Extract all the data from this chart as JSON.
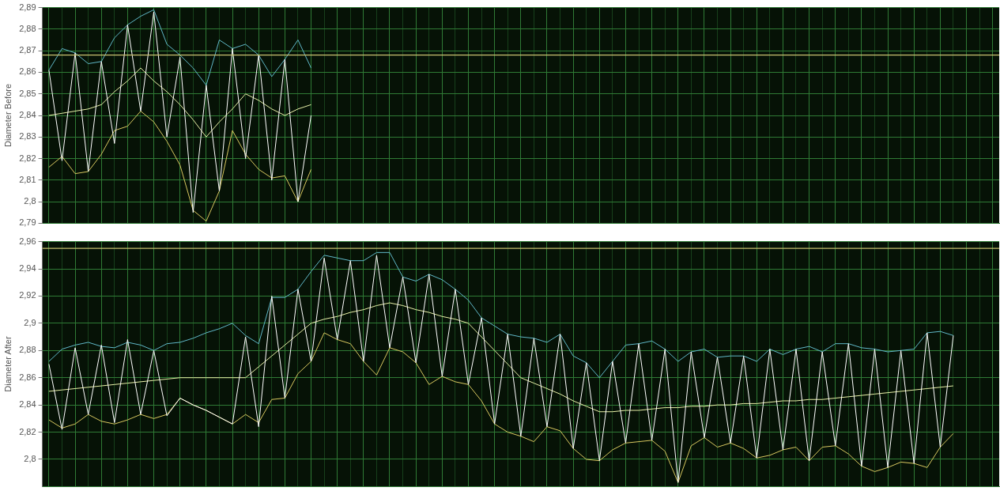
{
  "chart_data": [
    {
      "type": "line",
      "ylabel": "Diameter Before",
      "categories": [
        null,
        null,
        null,
        null,
        null,
        null,
        null,
        null,
        null,
        null,
        null,
        null,
        null,
        null,
        null,
        null,
        null,
        null,
        null,
        null,
        null,
        null,
        null,
        null,
        null,
        null,
        null,
        null,
        null,
        null,
        null,
        null,
        null,
        null,
        null,
        null,
        null,
        null,
        null,
        null,
        null,
        null,
        null,
        null,
        null,
        null,
        null,
        null,
        null,
        null,
        null,
        null,
        null,
        null,
        null,
        null,
        null,
        null,
        null,
        null,
        null,
        null,
        null,
        null,
        null,
        null,
        null,
        null,
        null,
        null,
        null,
        null,
        null
      ],
      "ylim": [
        2.79,
        2.89
      ],
      "yticks": [
        {
          "value": 2.79,
          "label": "2,79"
        },
        {
          "value": 2.8,
          "label": "2,8"
        },
        {
          "value": 2.81,
          "label": "2,81"
        },
        {
          "value": 2.82,
          "label": "2,82"
        },
        {
          "value": 2.83,
          "label": "2,83"
        },
        {
          "value": 2.84,
          "label": "2,84"
        },
        {
          "value": 2.85,
          "label": "2,85"
        },
        {
          "value": 2.86,
          "label": "2,86"
        },
        {
          "value": 2.87,
          "label": "2,87"
        },
        {
          "value": 2.88,
          "label": "2,88"
        },
        {
          "value": 2.89,
          "label": "2,89"
        }
      ],
      "tick_labels": "y",
      "grid": true,
      "legend": false,
      "marker": "none",
      "line_style": "solid",
      "ref_lines": [
        {
          "axis": "y",
          "value": 2.868,
          "color": "#c8c070"
        }
      ],
      "series": [
        {
          "color": "#ffffff",
          "values": [
            2.861,
            2.819,
            2.869,
            2.814,
            2.865,
            2.827,
            2.882,
            2.842,
            2.888,
            2.83,
            2.867,
            2.795,
            2.854,
            2.805,
            2.871,
            2.82,
            2.868,
            2.81,
            2.866,
            2.8,
            2.84,
            null,
            null,
            null,
            null,
            null,
            null,
            null,
            null,
            null,
            null,
            null,
            null,
            null,
            null,
            null,
            null,
            null,
            null,
            null,
            null,
            null,
            null,
            null,
            null,
            null,
            null,
            null,
            null,
            null,
            null,
            null,
            null,
            null,
            null,
            null,
            null,
            null,
            null,
            null,
            null,
            null,
            null,
            null,
            null,
            null,
            null,
            null,
            null,
            null,
            null,
            null,
            null
          ]
        },
        {
          "color": "#e8f0a8",
          "values": [
            2.84,
            2.841,
            2.842,
            2.843,
            2.845,
            2.851,
            2.856,
            2.862,
            2.856,
            2.851,
            2.845,
            2.838,
            2.83,
            2.837,
            2.843,
            2.85,
            2.847,
            2.843,
            2.84,
            2.843,
            2.845,
            null,
            null,
            null,
            null,
            null,
            null,
            null,
            null,
            null,
            null,
            null,
            null,
            null,
            null,
            null,
            null,
            null,
            null,
            null,
            null,
            null,
            null,
            null,
            null,
            null,
            null,
            null,
            null,
            null,
            null,
            null,
            null,
            null,
            null,
            null,
            null,
            null,
            null,
            null,
            null,
            null,
            null,
            null,
            null,
            null,
            null,
            null,
            null,
            null,
            null,
            null,
            null
          ]
        },
        {
          "color": "#d8c860",
          "values": [
            2.816,
            2.821,
            2.813,
            2.814,
            2.822,
            2.833,
            2.835,
            2.842,
            2.837,
            2.828,
            2.817,
            2.796,
            2.791,
            2.805,
            2.833,
            2.822,
            2.815,
            2.811,
            2.812,
            2.8,
            2.815,
            null,
            null,
            null,
            null,
            null,
            null,
            null,
            null,
            null,
            null,
            null,
            null,
            null,
            null,
            null,
            null,
            null,
            null,
            null,
            null,
            null,
            null,
            null,
            null,
            null,
            null,
            null,
            null,
            null,
            null,
            null,
            null,
            null,
            null,
            null,
            null,
            null,
            null,
            null,
            null,
            null,
            null,
            null,
            null,
            null,
            null,
            null,
            null,
            null,
            null,
            null,
            null
          ]
        },
        {
          "color": "#60b8c8",
          "values": [
            2.861,
            2.871,
            2.869,
            2.864,
            2.865,
            2.876,
            2.882,
            2.886,
            2.889,
            2.873,
            2.868,
            2.862,
            2.854,
            2.875,
            2.871,
            2.873,
            2.868,
            2.858,
            2.866,
            2.875,
            2.862,
            null,
            null,
            null,
            null,
            null,
            null,
            null,
            null,
            null,
            null,
            null,
            null,
            null,
            null,
            null,
            null,
            null,
            null,
            null,
            null,
            null,
            null,
            null,
            null,
            null,
            null,
            null,
            null,
            null,
            null,
            null,
            null,
            null,
            null,
            null,
            null,
            null,
            null,
            null,
            null,
            null,
            null,
            null,
            null,
            null,
            null,
            null,
            null,
            null,
            null,
            null,
            null
          ]
        }
      ]
    },
    {
      "type": "line",
      "ylabel": "Diameter After",
      "categories": [
        null,
        null,
        null,
        null,
        null,
        null,
        null,
        null,
        null,
        null,
        null,
        null,
        null,
        null,
        null,
        null,
        null,
        null,
        null,
        null,
        null,
        null,
        null,
        null,
        null,
        null,
        null,
        null,
        null,
        null,
        null,
        null,
        null,
        null,
        null,
        null,
        null,
        null,
        null,
        null,
        null,
        null,
        null,
        null,
        null,
        null,
        null,
        null,
        null,
        null,
        null,
        null,
        null,
        null,
        null,
        null,
        null,
        null,
        null,
        null,
        null,
        null,
        null,
        null,
        null,
        null,
        null,
        null,
        null,
        null,
        null,
        null,
        null
      ],
      "ylim": [
        2.78,
        2.96
      ],
      "yticks": [
        {
          "value": 2.8,
          "label": "2,8"
        },
        {
          "value": 2.82,
          "label": "2,82"
        },
        {
          "value": 2.84,
          "label": "2,84"
        },
        {
          "value": 2.86,
          "label": "2,86"
        },
        {
          "value": 2.88,
          "label": "2,88"
        },
        {
          "value": 2.9,
          "label": "2,9"
        },
        {
          "value": 2.92,
          "label": "2,92"
        },
        {
          "value": 2.94,
          "label": "2,94"
        },
        {
          "value": 2.96,
          "label": "2,96"
        }
      ],
      "tick_labels": "y",
      "grid": true,
      "legend": false,
      "marker": "none",
      "line_style": "solid",
      "ref_lines": [
        {
          "axis": "y",
          "value": 2.955,
          "color": "#c8c070"
        }
      ],
      "series": [
        {
          "color": "#ffffff",
          "values": [
            2.87,
            2.822,
            2.882,
            2.833,
            2.884,
            2.827,
            2.888,
            2.833,
            2.88,
            2.832,
            2.845,
            2.84,
            2.836,
            2.831,
            2.826,
            2.89,
            2.824,
            2.92,
            2.845,
            2.925,
            2.872,
            2.948,
            2.888,
            2.946,
            2.872,
            2.95,
            2.882,
            2.934,
            2.871,
            2.936,
            2.861,
            2.925,
            2.855,
            2.904,
            2.826,
            2.892,
            2.817,
            2.889,
            2.824,
            2.892,
            2.808,
            2.871,
            2.799,
            2.872,
            2.812,
            2.885,
            2.814,
            2.881,
            2.783,
            2.879,
            2.816,
            2.875,
            2.812,
            2.876,
            2.801,
            2.881,
            2.807,
            2.881,
            2.799,
            2.879,
            2.81,
            2.885,
            2.795,
            2.881,
            2.794,
            2.88,
            2.797,
            2.893,
            2.809,
            2.891,
            null,
            null,
            null
          ]
        },
        {
          "color": "#e8f0a8",
          "values": [
            2.85,
            2.851,
            2.852,
            2.853,
            2.854,
            2.855,
            2.856,
            2.857,
            2.858,
            2.859,
            2.86,
            2.86,
            2.86,
            2.86,
            2.86,
            2.86,
            2.868,
            2.876,
            2.884,
            2.892,
            2.9,
            2.903,
            2.905,
            2.908,
            2.91,
            2.913,
            2.915,
            2.913,
            2.91,
            2.908,
            2.905,
            2.903,
            2.9,
            2.89,
            2.88,
            2.87,
            2.86,
            2.856,
            2.852,
            2.848,
            2.843,
            2.839,
            2.835,
            2.835,
            2.836,
            2.836,
            2.837,
            2.838,
            2.838,
            2.839,
            2.839,
            2.84,
            2.84,
            2.841,
            2.841,
            2.842,
            2.843,
            2.843,
            2.844,
            2.844,
            2.845,
            2.846,
            2.847,
            2.848,
            2.849,
            2.85,
            2.851,
            2.852,
            2.853,
            2.854,
            null,
            null,
            null
          ]
        },
        {
          "color": "#d8c860",
          "values": [
            2.829,
            2.823,
            2.826,
            2.833,
            2.828,
            2.826,
            2.829,
            2.833,
            2.83,
            2.833,
            2.845,
            2.84,
            2.836,
            2.831,
            2.826,
            2.833,
            2.827,
            2.844,
            2.845,
            2.863,
            2.872,
            2.893,
            2.888,
            2.885,
            2.872,
            2.862,
            2.882,
            2.879,
            2.871,
            2.855,
            2.861,
            2.857,
            2.855,
            2.843,
            2.826,
            2.82,
            2.817,
            2.813,
            2.824,
            2.821,
            2.808,
            2.8,
            2.799,
            2.807,
            2.812,
            2.813,
            2.814,
            2.806,
            2.783,
            2.81,
            2.816,
            2.809,
            2.812,
            2.808,
            2.801,
            2.803,
            2.807,
            2.809,
            2.799,
            2.809,
            2.81,
            2.804,
            2.795,
            2.791,
            2.794,
            2.798,
            2.797,
            2.794,
            2.809,
            2.819,
            null,
            null,
            null
          ]
        },
        {
          "color": "#60b8c8",
          "values": [
            2.872,
            2.881,
            2.884,
            2.886,
            2.883,
            2.882,
            2.886,
            2.884,
            2.88,
            2.885,
            2.886,
            2.889,
            2.893,
            2.896,
            2.9,
            2.891,
            2.885,
            2.919,
            2.919,
            2.925,
            2.938,
            2.95,
            2.948,
            2.946,
            2.946,
            2.952,
            2.952,
            2.934,
            2.931,
            2.936,
            2.932,
            2.925,
            2.917,
            2.904,
            2.898,
            2.892,
            2.89,
            2.889,
            2.886,
            2.892,
            2.876,
            2.871,
            2.86,
            2.872,
            2.884,
            2.885,
            2.887,
            2.881,
            2.872,
            2.879,
            2.881,
            2.875,
            2.876,
            2.876,
            2.872,
            2.881,
            2.877,
            2.881,
            2.883,
            2.879,
            2.885,
            2.885,
            2.882,
            2.881,
            2.879,
            2.88,
            2.881,
            2.893,
            2.894,
            2.891,
            null,
            null,
            null
          ]
        }
      ]
    }
  ]
}
